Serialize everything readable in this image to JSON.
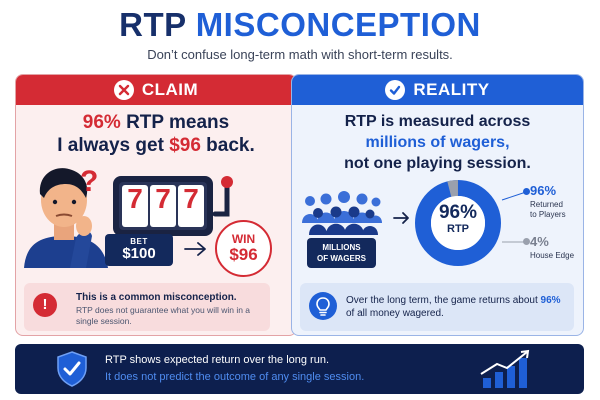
{
  "header": {
    "title_part1": "RTP",
    "title_part2": "MISCONCEPTION",
    "subtitle": "Don’t confuse long-term math with short-term results."
  },
  "claim": {
    "label": "CLAIM",
    "statement_pct": "96%",
    "statement_mid": " RTP means",
    "statement_line2_a": "I always get ",
    "statement_amount": "$96",
    "statement_line2_b": " back.",
    "slot_symbols": [
      "7",
      "7",
      "7"
    ],
    "bet_label": "BET",
    "bet_value": "$100",
    "win_label": "WIN",
    "win_value": "$96",
    "note_title": "This is a common misconception.",
    "note_body": "RTP does not guarantee what you will win in a single session.",
    "note_icon_text": "!"
  },
  "reality": {
    "label": "REALITY",
    "statement_line1": "RTP is measured across",
    "statement_line2": "millions of wagers,",
    "statement_line3": "not one playing session.",
    "millions_label_1": "MILLIONS",
    "millions_label_2": "OF WAGERS",
    "donut_pct": "96%",
    "donut_label": "RTP",
    "returned_value": "96%",
    "returned_label_1": "Returned",
    "returned_label_2": "to Players",
    "edge_value": "4%",
    "edge_label": "House Edge",
    "note_text_a": "Over the long term, the game returns about ",
    "note_text_pct": "96%",
    "note_text_b": " of all money wagered.",
    "rtp_share": 0.96
  },
  "footer": {
    "line1": "RTP shows expected return over the long run.",
    "line2": "It does not predict the outcome of any single session."
  },
  "colors": {
    "claim_red": "#d42b34",
    "reality_blue": "#1f5fd6",
    "navy": "#0d1f4e",
    "edge_gray": "#9aa0ad"
  },
  "icons": {
    "claim_head": "close-icon",
    "reality_head": "check-icon",
    "question": "question-mark-icon",
    "thinking_person": "thinking-person-icon",
    "slot_machine": "slot-machine-icon",
    "arrow": "arrow-right-icon",
    "crowd": "crowd-icon",
    "lightbulb": "lightbulb-icon",
    "shield": "shield-check-icon",
    "growth_chart": "growth-chart-icon"
  }
}
